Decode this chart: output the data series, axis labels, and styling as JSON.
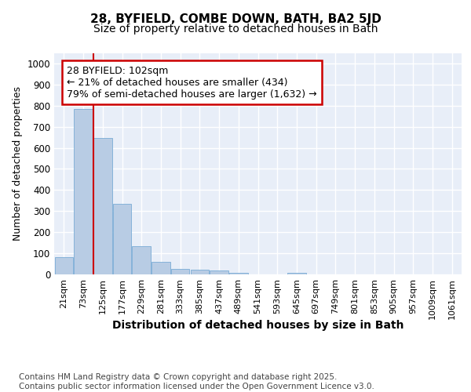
{
  "title1": "28, BYFIELD, COMBE DOWN, BATH, BA2 5JD",
  "title2": "Size of property relative to detached houses in Bath",
  "xlabel": "Distribution of detached houses by size in Bath",
  "ylabel": "Number of detached properties",
  "bar_labels": [
    "21sqm",
    "73sqm",
    "125sqm",
    "177sqm",
    "229sqm",
    "281sqm",
    "333sqm",
    "385sqm",
    "437sqm",
    "489sqm",
    "541sqm",
    "593sqm",
    "645sqm",
    "697sqm",
    "749sqm",
    "801sqm",
    "853sqm",
    "905sqm",
    "957sqm",
    "1009sqm",
    "1061sqm"
  ],
  "bar_values": [
    83,
    783,
    648,
    335,
    135,
    60,
    25,
    22,
    17,
    7,
    0,
    0,
    8,
    0,
    0,
    0,
    0,
    0,
    0,
    0,
    0
  ],
  "bar_color": "#b8cce4",
  "bar_edge_color": "#7aacd6",
  "background_color": "#e8eef8",
  "grid_color": "#ffffff",
  "annotation_box_text": "28 BYFIELD: 102sqm\n← 21% of detached houses are smaller (434)\n79% of semi-detached houses are larger (1,632) →",
  "annotation_box_color": "#ffffff",
  "annotation_box_edge_color": "#cc0000",
  "vline_x_index": 1.52,
  "vline_color": "#cc0000",
  "ylim": [
    0,
    1050
  ],
  "yticks": [
    0,
    100,
    200,
    300,
    400,
    500,
    600,
    700,
    800,
    900,
    1000
  ],
  "footer_text": "Contains HM Land Registry data © Crown copyright and database right 2025.\nContains public sector information licensed under the Open Government Licence v3.0.",
  "title_fontsize": 11,
  "subtitle_fontsize": 10,
  "xlabel_fontsize": 10,
  "ylabel_fontsize": 9,
  "tick_fontsize": 8.5,
  "annotation_fontsize": 9,
  "footer_fontsize": 7.5
}
